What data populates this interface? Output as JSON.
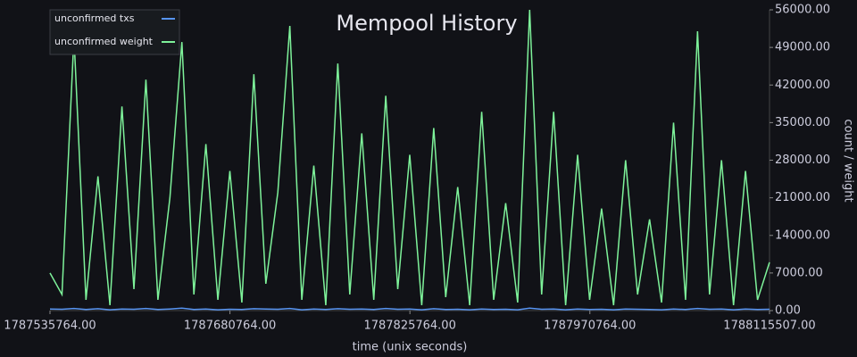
{
  "chart_data": {
    "type": "line",
    "title": "Mempool History",
    "x_label": "time (unix seconds)",
    "y_label": "count / weight",
    "x": [
      1787535764,
      1787545426,
      1787555088,
      1787564750,
      1787574412,
      1787584074,
      1787593736,
      1787603398,
      1787613060,
      1787622722,
      1787632384,
      1787642046,
      1787651708,
      1787661370,
      1787671032,
      1787680694,
      1787690356,
      1787700018,
      1787709680,
      1787719342,
      1787729004,
      1787738666,
      1787748328,
      1787757990,
      1787767652,
      1787777314,
      1787786976,
      1787796638,
      1787806300,
      1787815962,
      1787825624,
      1787835286,
      1787844948,
      1787854610,
      1787864272,
      1787873934,
      1787883596,
      1787893258,
      1787902920,
      1787912582,
      1787922244,
      1787931906,
      1787941568,
      1787951230,
      1787960892,
      1787970554,
      1787980216,
      1787989878,
      1787999540,
      1788009202,
      1788018864,
      1788028526,
      1788038188,
      1788047850,
      1788057512,
      1788067174,
      1788076836,
      1788086498,
      1788096160,
      1788105822,
      1788115507
    ],
    "series": [
      {
        "name": "unconfirmed txs",
        "color": "#5794f2",
        "values": [
          300,
          250,
          400,
          200,
          350,
          150,
          300,
          250,
          400,
          200,
          300,
          450,
          200,
          300,
          150,
          250,
          200,
          350,
          300,
          250,
          400,
          150,
          300,
          200,
          350,
          250,
          300,
          200,
          400,
          250,
          300,
          150,
          350,
          200,
          250,
          150,
          300,
          200,
          250,
          150,
          450,
          250,
          300,
          150,
          300,
          200,
          250,
          150,
          300,
          250,
          200,
          150,
          300,
          200,
          400,
          250,
          300,
          150,
          300,
          200,
          250
        ]
      },
      {
        "name": "unconfirmed weight",
        "color": "#7ef29a",
        "values": [
          7000,
          3000,
          51000,
          2000,
          25000,
          1000,
          38000,
          4000,
          43000,
          2000,
          21000,
          50000,
          3000,
          31000,
          2000,
          26000,
          1500,
          44000,
          5000,
          22000,
          53000,
          2000,
          27000,
          1000,
          46000,
          3000,
          33000,
          2000,
          40000,
          4000,
          29000,
          1000,
          34000,
          2500,
          23000,
          1000,
          37000,
          2000,
          20000,
          1500,
          56000,
          3000,
          37000,
          1000,
          29000,
          2000,
          19000,
          1000,
          28000,
          3000,
          17000,
          1500,
          35000,
          2000,
          52000,
          3000,
          28000,
          1000,
          26000,
          2000,
          9000
        ]
      }
    ],
    "xlim": [
      1787535764,
      1788115507
    ],
    "xticks": [
      {
        "value": 1787535764,
        "label": "1787535764.00"
      },
      {
        "value": 1787680764,
        "label": "1787680764.00"
      },
      {
        "value": 1787825764,
        "label": "1787825764.00"
      },
      {
        "value": 1787970764,
        "label": "1787970764.00"
      },
      {
        "value": 1788115507,
        "label": "1788115507.00"
      }
    ],
    "ylim": [
      0,
      56000
    ],
    "yticks": [
      {
        "value": 0,
        "label": "0.00"
      },
      {
        "value": 7000,
        "label": "7000.00"
      },
      {
        "value": 14000,
        "label": "14000.00"
      },
      {
        "value": 21000,
        "label": "21000.00"
      },
      {
        "value": 28000,
        "label": "28000.00"
      },
      {
        "value": 35000,
        "label": "35000.00"
      },
      {
        "value": 42000,
        "label": "42000.00"
      },
      {
        "value": 49000,
        "label": "49000.00"
      },
      {
        "value": 56000,
        "label": "56000.00"
      }
    ],
    "legend": "upper left"
  }
}
